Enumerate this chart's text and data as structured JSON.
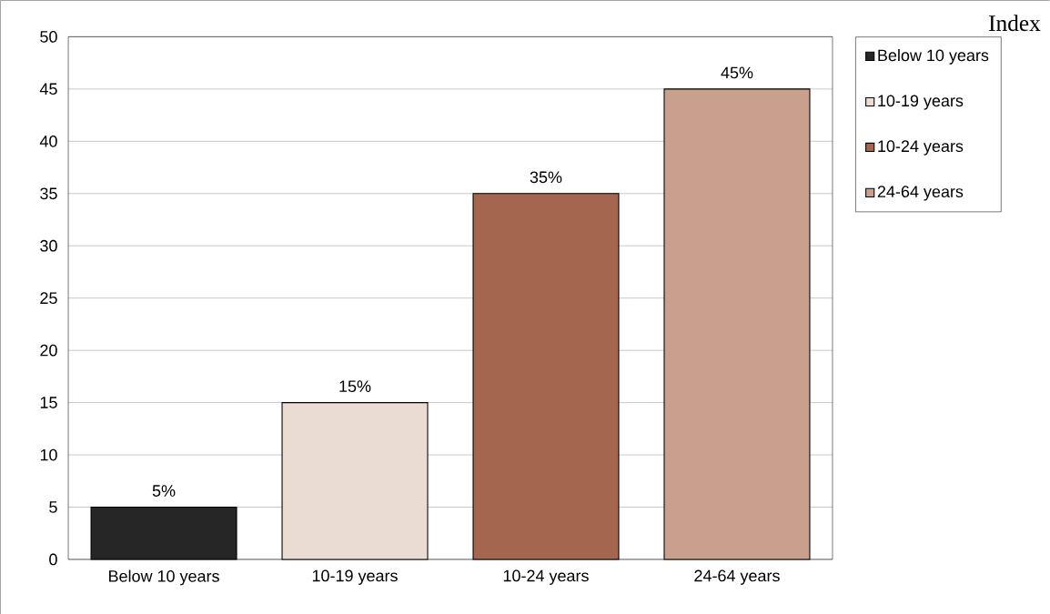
{
  "chart_data": {
    "type": "bar",
    "legend_title": "Index",
    "categories": [
      "Below 10 years",
      "10-19 years",
      "10-24 years",
      "24-64 years"
    ],
    "series": [
      {
        "name": "Below 10 years",
        "color": "#262626",
        "values": [
          5,
          null,
          null,
          null
        ],
        "value_labels": [
          "5%",
          null,
          null,
          null
        ]
      },
      {
        "name": "10-19 years",
        "color": "#eadbd3",
        "values": [
          null,
          15,
          null,
          null
        ],
        "value_labels": [
          null,
          "15%",
          null,
          null
        ]
      },
      {
        "name": "10-24 years",
        "color": "#a4664e",
        "values": [
          null,
          null,
          35,
          null
        ],
        "value_labels": [
          null,
          null,
          "35%",
          null
        ]
      },
      {
        "name": "24-64 years",
        "color": "#c9a08e",
        "values": [
          null,
          null,
          null,
          45
        ],
        "value_labels": [
          null,
          null,
          null,
          "45%"
        ]
      }
    ],
    "ylim": [
      0,
      50
    ],
    "yticks": [
      0,
      5,
      10,
      15,
      20,
      25,
      30,
      35,
      40,
      45,
      50
    ],
    "grid": "y",
    "legend": "right"
  }
}
